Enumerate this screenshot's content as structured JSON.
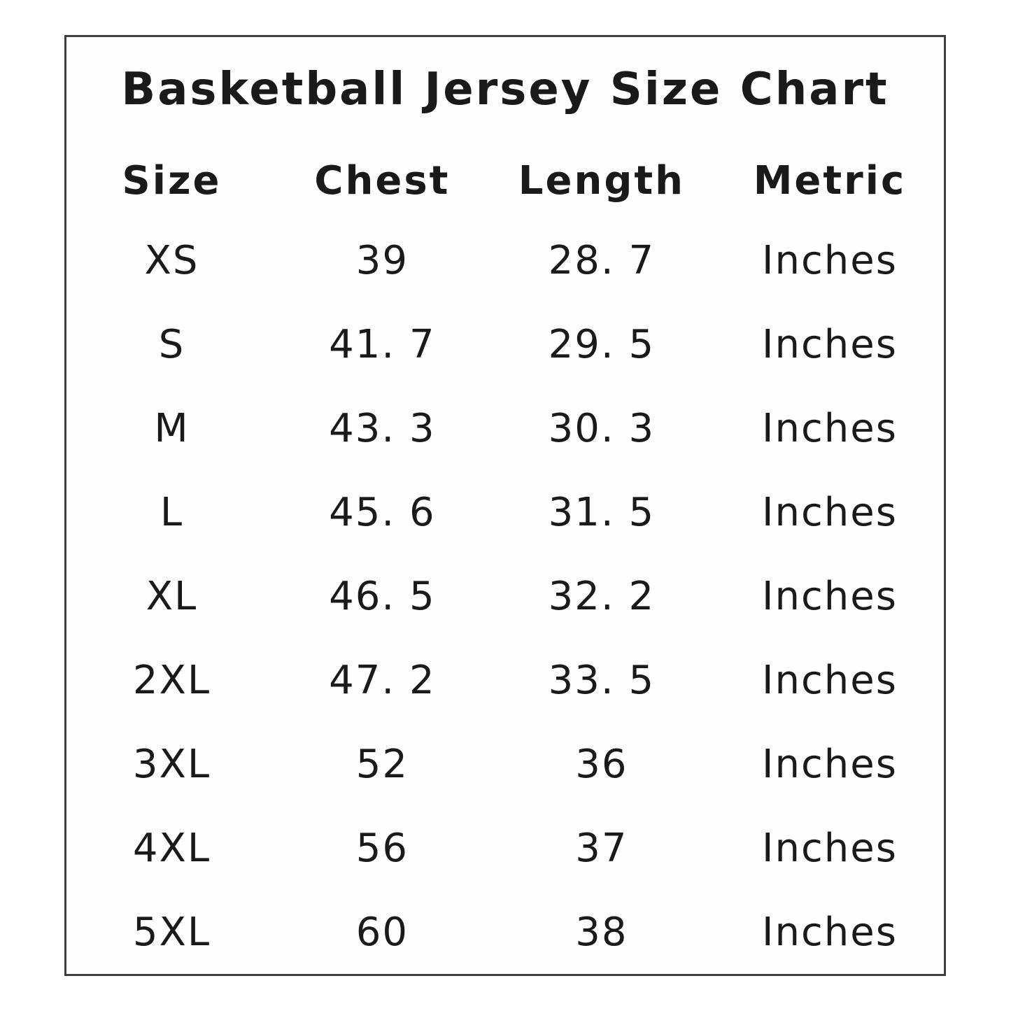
{
  "title": "Basketball Jersey Size Chart",
  "table": {
    "headers": [
      "Size",
      "Chest",
      "Length",
      "Metric"
    ],
    "rows": [
      {
        "size": "XS",
        "chest": "39",
        "length": "28. 7",
        "metric": "Inches"
      },
      {
        "size": "S",
        "chest": "41. 7",
        "length": "29. 5",
        "metric": "Inches"
      },
      {
        "size": "M",
        "chest": "43. 3",
        "length": "30. 3",
        "metric": "Inches"
      },
      {
        "size": "L",
        "chest": "45. 6",
        "length": "31. 5",
        "metric": "Inches"
      },
      {
        "size": "XL",
        "chest": "46. 5",
        "length": "32. 2",
        "metric": "Inches"
      },
      {
        "size": "2XL",
        "chest": "47. 2",
        "length": "33. 5",
        "metric": "Inches"
      },
      {
        "size": "3XL",
        "chest": "52",
        "length": "36",
        "metric": "Inches"
      },
      {
        "size": "4XL",
        "chest": "56",
        "length": "37",
        "metric": "Inches"
      },
      {
        "size": "5XL",
        "chest": "60",
        "length": "38",
        "metric": "Inches"
      }
    ]
  },
  "colors": {
    "text": "#1a1a1a",
    "border": "#3f3f3f",
    "background": "#ffffff"
  }
}
